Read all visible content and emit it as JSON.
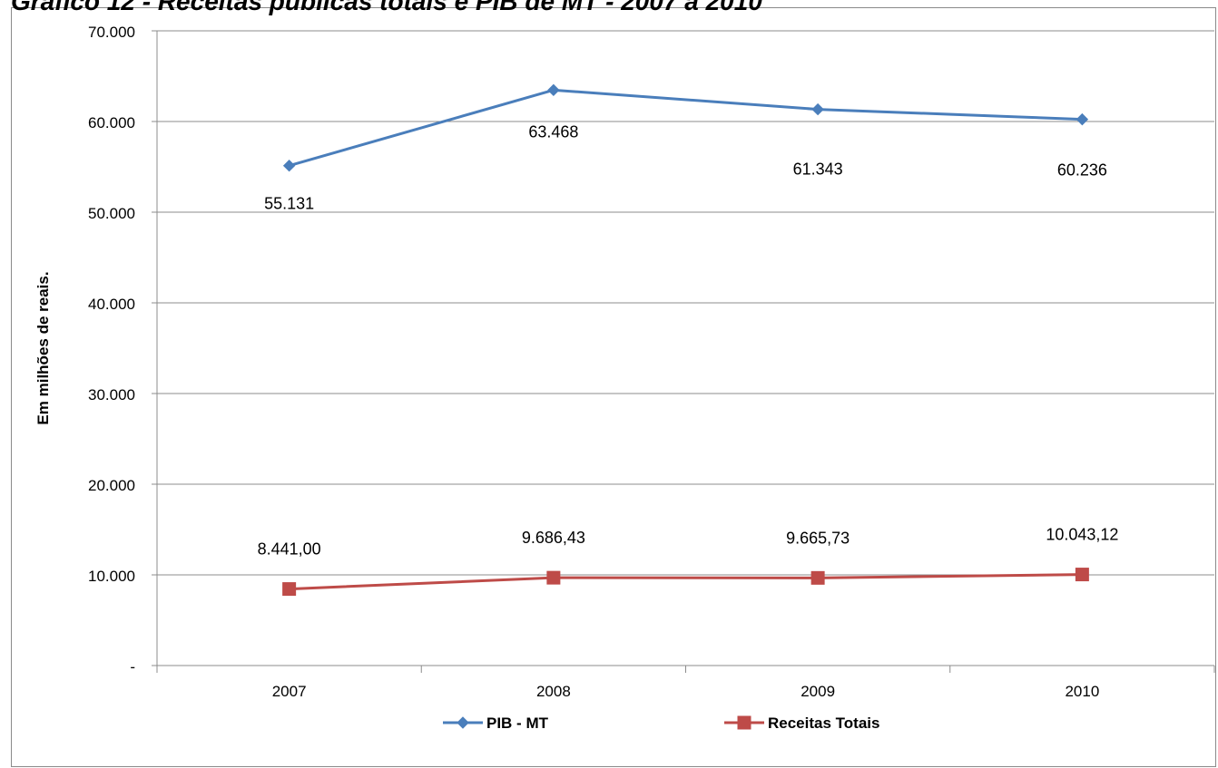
{
  "page_title": "Gráfico 12 - Receitas públicas totais e PIB de MT - 2007 a 2010",
  "chart_data": {
    "type": "line",
    "title": "Gráfico 12 - Receitas públicas totais e PIB de MT - 2007 a 2010",
    "xlabel": "",
    "ylabel": "Em milhões de reais.",
    "categories": [
      "2007",
      "2008",
      "2009",
      "2010"
    ],
    "ylim": [
      0,
      70000
    ],
    "y_ticks": [
      0,
      10000,
      20000,
      30000,
      40000,
      50000,
      60000,
      70000
    ],
    "y_tick_labels": [
      "-",
      "10.000",
      "20.000",
      "30.000",
      "40.000",
      "50.000",
      "60.000",
      "70.000"
    ],
    "grid": true,
    "legend_position": "bottom",
    "series": [
      {
        "name": "PIB - MT",
        "values": [
          55131,
          63468,
          61343,
          60236
        ],
        "data_labels": [
          "55.131",
          "63.468",
          "61.343",
          "60.236"
        ],
        "color": "#4a7ebb",
        "marker": "diamond"
      },
      {
        "name": "Receitas Totais",
        "values": [
          8441.0,
          9686.43,
          9665.73,
          10043.12
        ],
        "data_labels": [
          "8.441,00",
          "9.686,43",
          "9.665,73",
          "10.043,12"
        ],
        "color": "#be4b48",
        "marker": "square"
      }
    ]
  }
}
